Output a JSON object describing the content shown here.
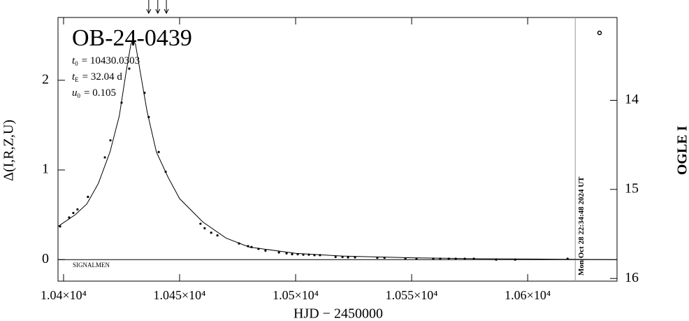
{
  "chart_data": {
    "type": "scatter",
    "title": "OB-24-0439",
    "params": [
      {
        "symbol": "t",
        "sub": "0",
        "label": "= 10430.0303"
      },
      {
        "symbol": "t",
        "sub": "E",
        "label": "= 32.04 d"
      },
      {
        "symbol": "u",
        "sub": "0",
        "label": "= 0.105"
      }
    ],
    "note": "SIGNALMEN",
    "timestamp": "Mon Oct 28 22:34:48 2024 UT",
    "timestamp_x": 10620.5,
    "x_label": "HJD − 2450000",
    "y_label": "Δ(I,R,Z,U)",
    "y2_label": "OGLE I",
    "xlim": [
      10397.6,
      10638.5
    ],
    "ylim": [
      -0.24,
      2.7
    ],
    "y2lim": [
      16.03,
      13.07
    ],
    "xticks": [
      {
        "value": 10400,
        "label": "1.04×10⁴"
      },
      {
        "value": 10450,
        "label": "1.045×10⁴"
      },
      {
        "value": 10500,
        "label": "1.05×10⁴"
      },
      {
        "value": 10550,
        "label": "1.055×10⁴"
      },
      {
        "value": 10600,
        "label": "1.06×10⁴"
      }
    ],
    "yticks": [
      0,
      1,
      2
    ],
    "y2ticks": [
      14,
      15,
      16
    ],
    "arrows": [
      10436.7,
      10440.6,
      10444.3
    ],
    "model": {
      "x": [
        10397.6,
        10405,
        10410,
        10415,
        10420,
        10424,
        10427,
        10429,
        10430,
        10431,
        10433,
        10436,
        10440,
        10445,
        10450,
        10460,
        10470,
        10480,
        10500,
        10520,
        10550,
        10580,
        10610,
        10638.5
      ],
      "values": [
        0.37,
        0.5,
        0.62,
        0.85,
        1.2,
        1.6,
        2.1,
        2.4,
        2.45,
        2.4,
        2.1,
        1.65,
        1.2,
        0.92,
        0.68,
        0.42,
        0.24,
        0.14,
        0.07,
        0.04,
        0.02,
        0.01,
        0.005,
        0
      ]
    },
    "points": {
      "x": [
        10398.5,
        10402.4,
        10404.2,
        10406.0,
        10410.5,
        10417.8,
        10420.2,
        10425.0,
        10428.3,
        10434.9,
        10436.7,
        10441.0,
        10444.0,
        10459.0,
        10460.8,
        10463.6,
        10466.3,
        10475.6,
        10479.5,
        10481.0,
        10484.0,
        10487.0,
        10492.8,
        10496.1,
        10498.5,
        10500.9,
        10503.3,
        10505.7,
        10508.1,
        10510.5,
        10517.2,
        10520.2,
        10522.6,
        10525.6,
        10535.2,
        10538.3,
        10547.3,
        10552.1,
        10559.3,
        10562.3,
        10566.0,
        10569.0,
        10572.9,
        10576.8,
        10586.4,
        10594.6,
        10617.2
      ],
      "values": [
        0.37,
        0.47,
        0.52,
        0.56,
        0.7,
        1.14,
        1.33,
        1.75,
        2.13,
        1.86,
        1.59,
        1.2,
        0.98,
        0.4,
        0.35,
        0.3,
        0.27,
        0.18,
        0.15,
        0.14,
        0.12,
        0.1,
        0.08,
        0.07,
        0.06,
        0.06,
        0.055,
        0.055,
        0.05,
        0.05,
        0.03,
        0.03,
        0.025,
        0.025,
        0.02,
        0.02,
        0.01,
        0.01,
        0.01,
        0.01,
        0.01,
        0.01,
        0.01,
        0.01,
        0,
        0,
        0.01
      ]
    },
    "color": "#000000",
    "timestamp_color": "#999999"
  }
}
